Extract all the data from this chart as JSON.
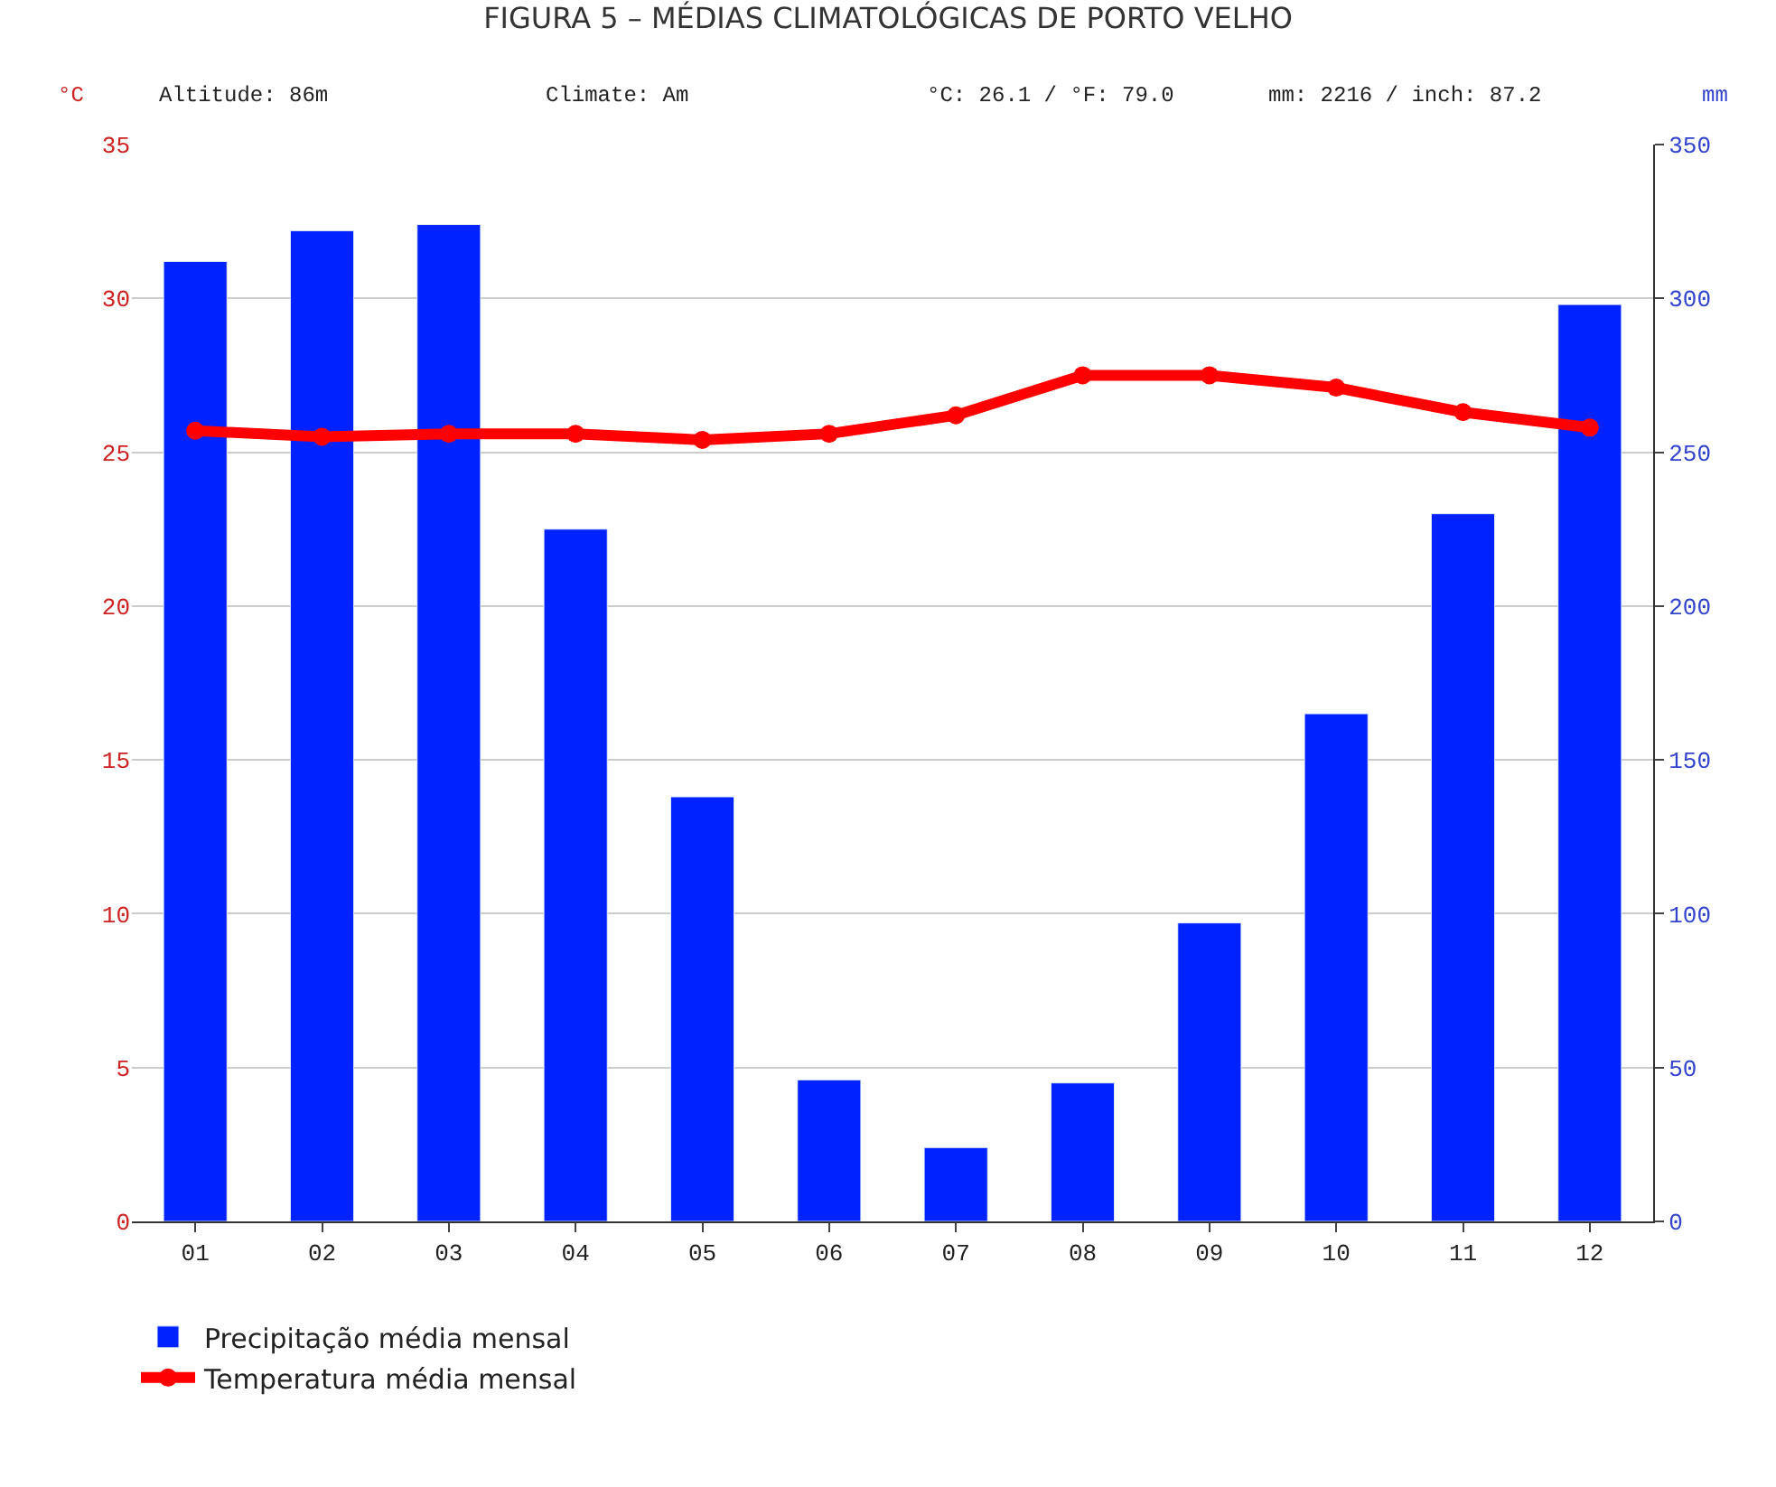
{
  "chart_data": {
    "type": "bar",
    "title": "FIGURA 5 – MÉDIAS CLIMATOLÓGICAS DE PORTO VELHO",
    "ylabel": "°C",
    "y2label": "mm",
    "categories": [
      "01",
      "02",
      "03",
      "04",
      "05",
      "06",
      "07",
      "08",
      "09",
      "10",
      "11",
      "12"
    ],
    "series": [
      {
        "name": "Precipitação média mensal",
        "axis": "y2",
        "color": "#0022ff",
        "values": [
          312,
          322,
          324,
          225,
          138,
          46,
          24,
          45,
          97,
          165,
          230,
          298
        ]
      },
      {
        "name": "Temperatura média mensal",
        "type": "line",
        "axis": "y",
        "color": "#ff0000",
        "marker": "circle",
        "line_style": "solid",
        "values": [
          25.7,
          25.5,
          25.6,
          25.6,
          25.4,
          25.6,
          26.2,
          27.5,
          27.5,
          27.1,
          26.3,
          25.8
        ]
      }
    ],
    "ylim": [
      0,
      35
    ],
    "yticks": [
      0,
      5,
      10,
      15,
      20,
      25,
      30,
      35
    ],
    "y2lim": [
      0,
      350
    ],
    "y2ticks": [
      0,
      50,
      100,
      150,
      200,
      250,
      300,
      350
    ],
    "grid": "y",
    "legend": "bottom left",
    "annotations": [
      "Altitude: 86m",
      "Climate: Am",
      "°C: 26.1 / °F: 79.0",
      "mm: 2216 / inch: 87.2"
    ]
  }
}
